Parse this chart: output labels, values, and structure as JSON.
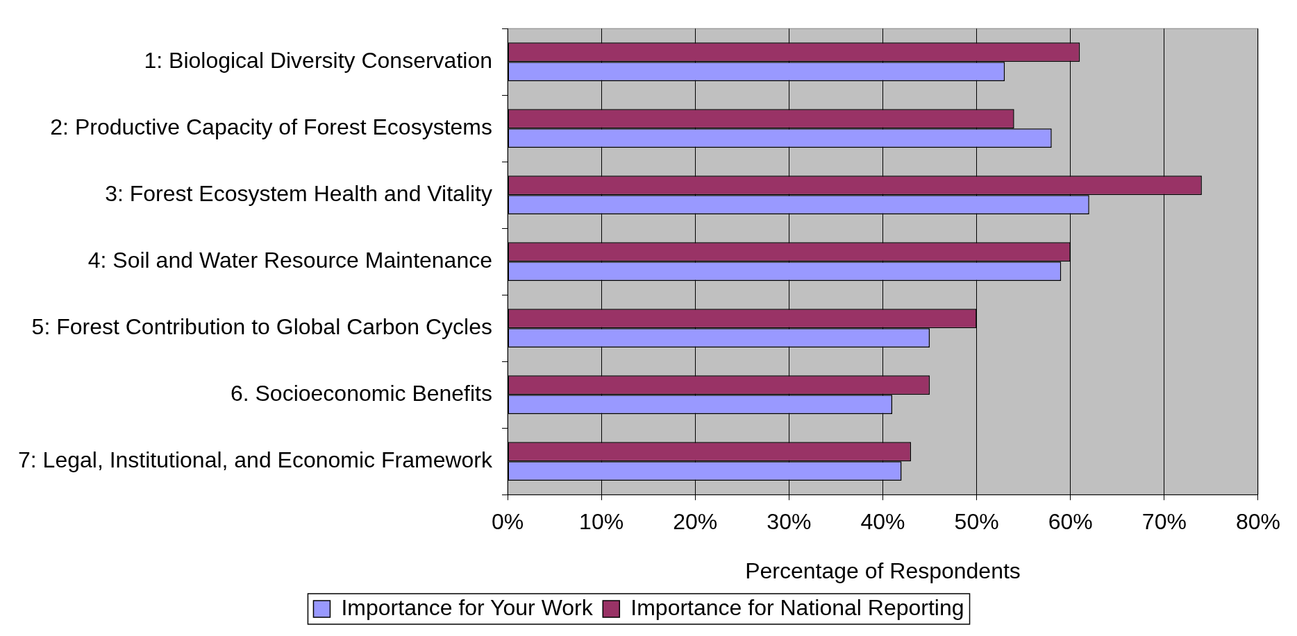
{
  "chart_data": {
    "type": "bar",
    "orientation": "horizontal",
    "xlabel": "Percentage of Respondents",
    "categories": [
      "1: Biological Diversity Conservation",
      "2: Productive Capacity of Forest Ecosystems",
      "3: Forest Ecosystem Health and Vitality",
      "4: Soil and Water Resource Maintenance",
      "5: Forest Contribution to Global Carbon Cycles",
      "6. Socioeconomic Benefits",
      "7: Legal, Institutional, and Economic Framework"
    ],
    "series": [
      {
        "name": "Importance for Your Work",
        "color": "#9999ff",
        "values": [
          53,
          58,
          62,
          59,
          45,
          41,
          42
        ]
      },
      {
        "name": "Importance for National Reporting",
        "color": "#993366",
        "values": [
          61,
          54,
          74,
          60,
          50,
          45,
          43
        ]
      }
    ],
    "xlim": [
      0,
      80
    ],
    "xticks": [
      {
        "value": 0,
        "label": "0%"
      },
      {
        "value": 10,
        "label": "10%"
      },
      {
        "value": 20,
        "label": "20%"
      },
      {
        "value": 30,
        "label": "30%"
      },
      {
        "value": 40,
        "label": "40%"
      },
      {
        "value": 50,
        "label": "50%"
      },
      {
        "value": 60,
        "label": "60%"
      },
      {
        "value": 70,
        "label": "70%"
      },
      {
        "value": 80,
        "label": "80%"
      }
    ],
    "grid": "x",
    "legend": "bottom"
  }
}
